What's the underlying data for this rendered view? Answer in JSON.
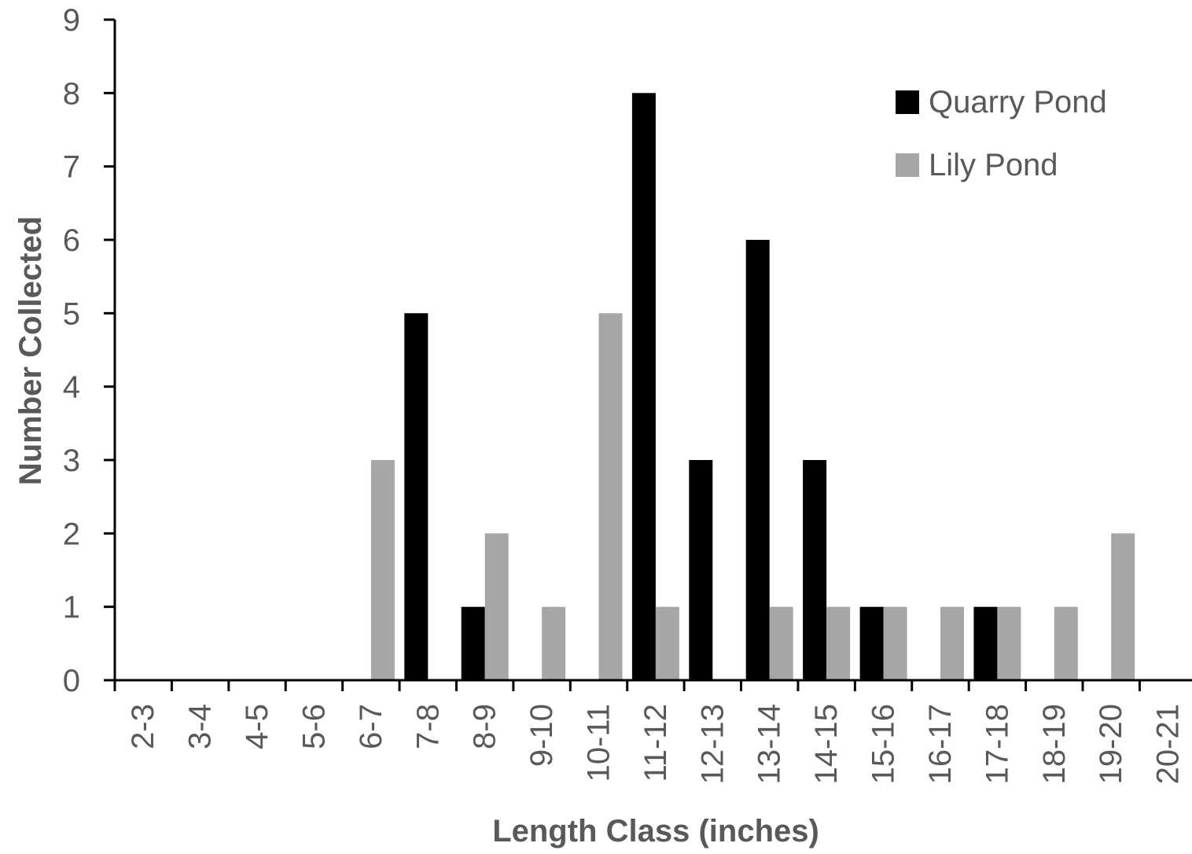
{
  "chart_data": {
    "type": "bar",
    "title": "",
    "xlabel": "Length Class (inches)",
    "ylabel": "Number Collected",
    "ylim": [
      0,
      9
    ],
    "yticks": [
      0,
      1,
      2,
      3,
      4,
      5,
      6,
      7,
      8,
      9
    ],
    "grid": false,
    "legend_position": "top-right",
    "categories": [
      "2-3",
      "3-4",
      "4-5",
      "5-6",
      "6-7",
      "7-8",
      "8-9",
      "9-10",
      "10-11",
      "11-12",
      "12-13",
      "13-14",
      "14-15",
      "15-16",
      "16-17",
      "17-18",
      "18-19",
      "19-20",
      "20-21"
    ],
    "series": [
      {
        "name": "Quarry Pond",
        "color": "#000000",
        "values": [
          0,
          0,
          0,
          0,
          0,
          5,
          1,
          0,
          0,
          8,
          3,
          6,
          3,
          1,
          0,
          1,
          0,
          0,
          0
        ]
      },
      {
        "name": "Lily Pond",
        "color": "#a6a6a6",
        "values": [
          0,
          0,
          0,
          0,
          3,
          0,
          2,
          1,
          5,
          1,
          0,
          1,
          1,
          1,
          1,
          1,
          1,
          2,
          0
        ]
      }
    ]
  }
}
